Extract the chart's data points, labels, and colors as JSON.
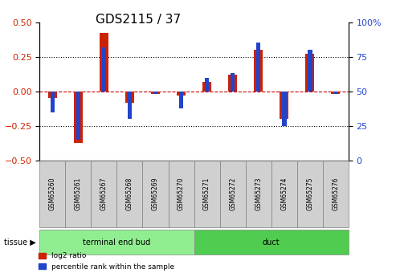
{
  "title": "GDS2115 / 37",
  "samples": [
    "GSM65260",
    "GSM65261",
    "GSM65267",
    "GSM65268",
    "GSM65269",
    "GSM65270",
    "GSM65271",
    "GSM65272",
    "GSM65273",
    "GSM65274",
    "GSM65275",
    "GSM65276"
  ],
  "log2_ratio": [
    -0.05,
    -0.37,
    0.42,
    -0.08,
    -0.02,
    -0.03,
    0.07,
    0.12,
    0.3,
    -0.2,
    0.27,
    -0.02
  ],
  "percentile_rank": [
    35,
    15,
    82,
    30,
    48,
    38,
    60,
    63,
    85,
    25,
    80,
    48
  ],
  "groups": [
    {
      "label": "terminal end bud",
      "start": 0,
      "end": 6,
      "color": "#90ee90"
    },
    {
      "label": "duct",
      "start": 6,
      "end": 12,
      "color": "#50cc50"
    }
  ],
  "bar_color_red": "#cc2200",
  "bar_color_blue": "#2244cc",
  "ylim_left": [
    -0.5,
    0.5
  ],
  "ylim_right": [
    0,
    100
  ],
  "yticks_left": [
    -0.5,
    -0.25,
    0.0,
    0.25,
    0.5
  ],
  "yticks_right": [
    0,
    25,
    50,
    75,
    100
  ],
  "hlines": [
    -0.25,
    0.0,
    0.25
  ],
  "tissue_label": "tissue",
  "legend_red": "log2 ratio",
  "legend_blue": "percentile rank within the sample",
  "background_color": "#ffffff",
  "plot_bg": "#ffffff",
  "bar_width": 0.35
}
